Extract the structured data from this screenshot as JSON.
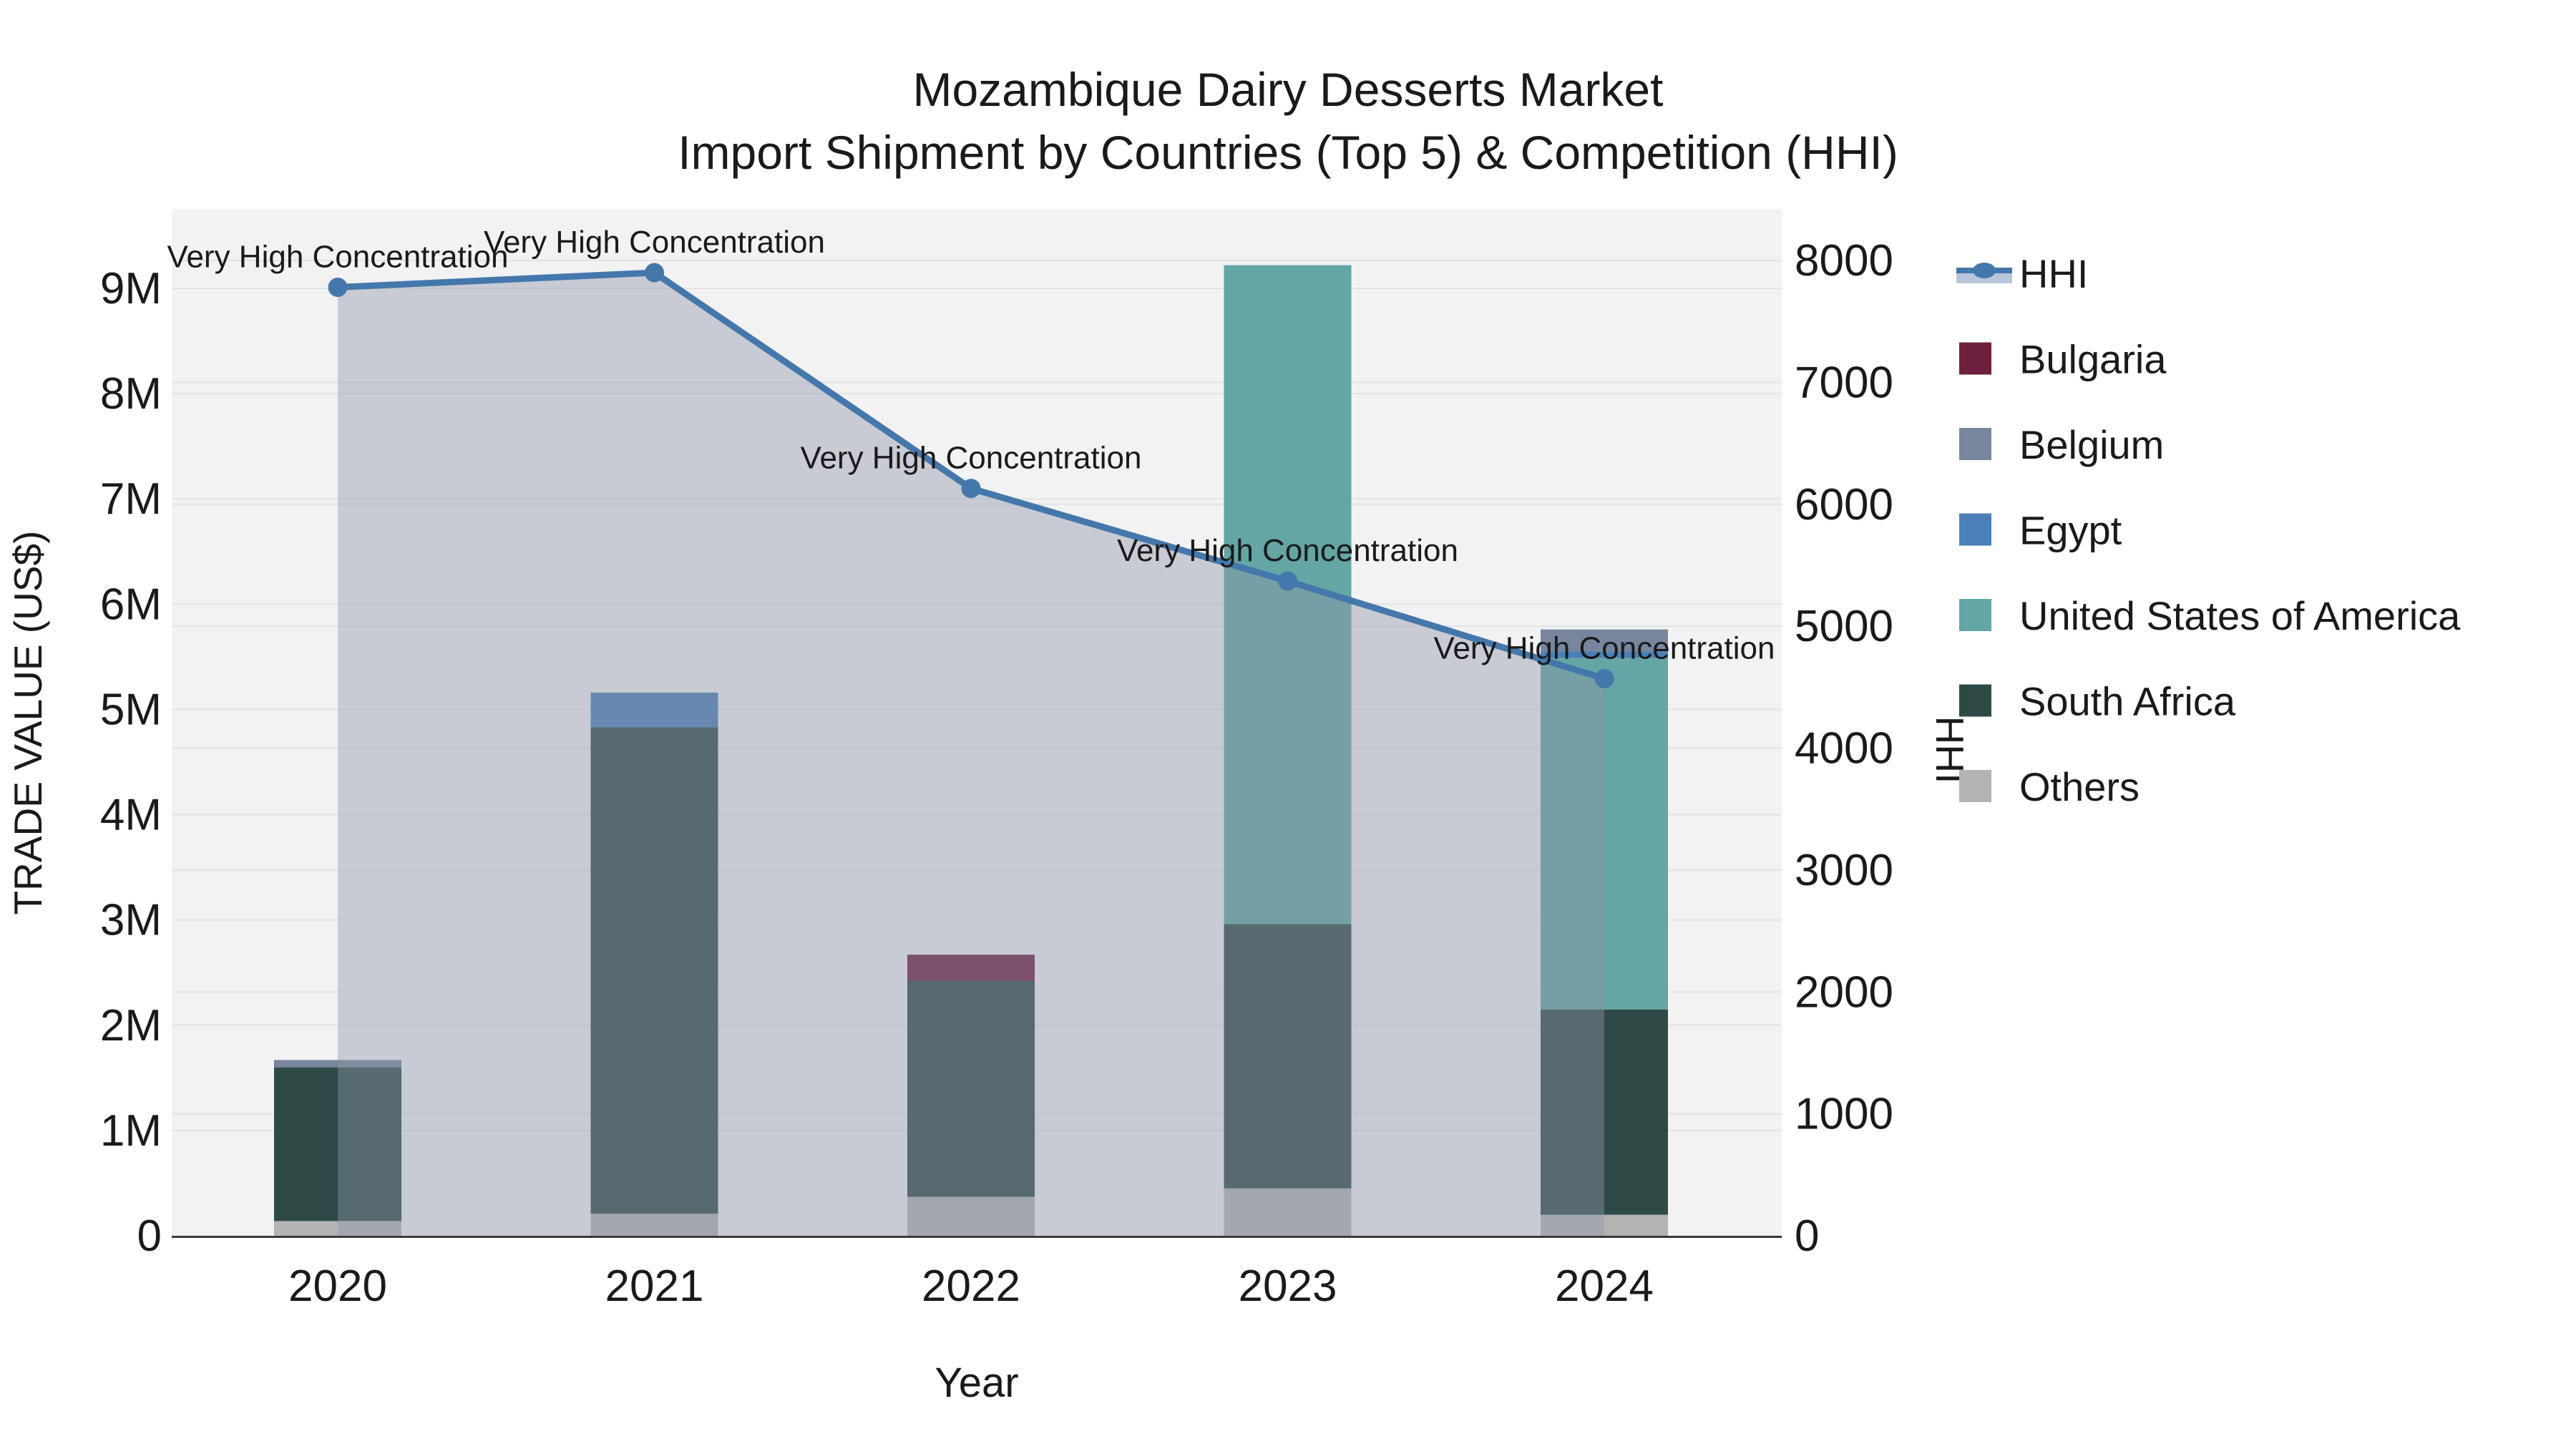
{
  "title": {
    "line1": "Mozambique Dairy Desserts Market",
    "line2": "Import Shipment by Countries (Top 5) & Competition (HHI)"
  },
  "axes": {
    "left": {
      "title": "TRADE VALUE (US$)",
      "tick_labels": [
        "0",
        "1M",
        "2M",
        "3M",
        "4M",
        "5M",
        "6M",
        "7M",
        "8M",
        "9M"
      ]
    },
    "right": {
      "title": "HHI",
      "tick_labels": [
        "0",
        "1000",
        "2000",
        "3000",
        "4000",
        "5000",
        "6000",
        "7000",
        "8000"
      ]
    },
    "x": {
      "title": "Year"
    }
  },
  "legend": {
    "items": [
      {
        "label": "HHI",
        "type": "line",
        "color": "#4478ac",
        "fill": "#b9c6da"
      },
      {
        "label": "Bulgaria",
        "type": "swatch",
        "color": "#6d2040"
      },
      {
        "label": "Belgium",
        "type": "swatch",
        "color": "#78869d"
      },
      {
        "label": "Egypt",
        "type": "swatch",
        "color": "#4a80b8"
      },
      {
        "label": "United States of America",
        "type": "swatch",
        "color": "#63a6a4"
      },
      {
        "label": "South Africa",
        "type": "swatch",
        "color": "#2d4a47"
      },
      {
        "label": "Others",
        "type": "swatch",
        "color": "#b3b3b3"
      }
    ]
  },
  "chart_data": {
    "type": "bar+line",
    "title": "Mozambique Dairy Desserts Market\nImport Shipment by Countries (Top 5) & Competition (HHI)",
    "xlabel": "Year",
    "ylabel_left": "TRADE VALUE (US$)",
    "ylabel_right": "HHI",
    "categories": [
      "2020",
      "2021",
      "2022",
      "2023",
      "2024"
    ],
    "bar_unit": "US$ millions",
    "stack_order_bottom_to_top": [
      "Others",
      "South Africa",
      "United States of America",
      "Egypt",
      "Belgium",
      "Bulgaria"
    ],
    "series": [
      {
        "name": "Bulgaria",
        "color": "#6d2040",
        "values": [
          0,
          0,
          0.25,
          0,
          0
        ]
      },
      {
        "name": "Belgium",
        "color": "#78869d",
        "values": [
          0.07,
          0,
          0,
          0,
          0.21
        ]
      },
      {
        "name": "Egypt",
        "color": "#4a80b8",
        "values": [
          0,
          0.33,
          0,
          0,
          0.06
        ]
      },
      {
        "name": "United States of America",
        "color": "#63a6a4",
        "values": [
          0,
          0,
          0,
          6.26,
          3.34
        ]
      },
      {
        "name": "South Africa",
        "color": "#2d4a47",
        "values": [
          1.46,
          4.62,
          2.05,
          2.51,
          1.95
        ]
      },
      {
        "name": "Others",
        "color": "#b3b3b3",
        "values": [
          0.14,
          0.21,
          0.37,
          0.45,
          0.2
        ]
      }
    ],
    "bar_totals": [
      1.67,
      5.16,
      2.67,
      9.22,
      5.76
    ],
    "hhi": {
      "name": "HHI",
      "color": "#4478ac",
      "band_color": "rgba(142,151,168,0.42)",
      "values": [
        7780,
        7900,
        6130,
        5370,
        4570
      ],
      "point_labels": [
        "Very High Concentration",
        "Very High Concentration",
        "Very High Concentration",
        "Very High Concentration",
        "Very High Concentration"
      ]
    },
    "ylim_left_millions": [
      0,
      9.75
    ],
    "ylim_right": [
      0,
      8420
    ],
    "grid": true,
    "legend_position": "right"
  }
}
